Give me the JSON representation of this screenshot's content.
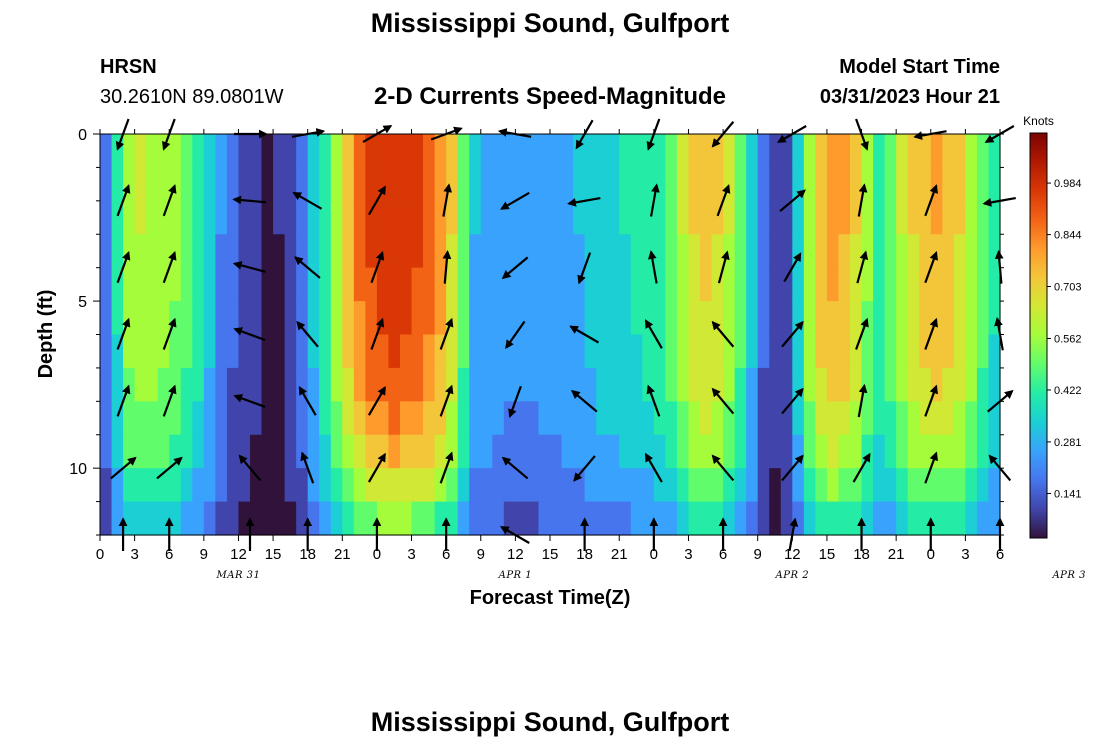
{
  "header": {
    "title": "Mississippi Sound, Gulfport",
    "station_id": "HRSN",
    "coordinates": "30.2610N  89.0801W",
    "subtitle": "2-D Currents Speed-Magnitude",
    "model_start_label": "Model Start Time",
    "model_start_value": "03/31/2023 Hour 21",
    "repeated_title": "Mississippi Sound, Gulfport"
  },
  "chart_data": {
    "type": "heatmap",
    "xlabel": "Forecast Time(Z)",
    "ylabel": "Depth (ft)",
    "x_tick_labels": [
      "0",
      "3",
      "6",
      "9",
      "12",
      "15",
      "18",
      "21",
      "0",
      "3",
      "6",
      "9",
      "12",
      "15",
      "18",
      "21",
      "0",
      "3",
      "6",
      "9",
      "12",
      "15",
      "18",
      "21",
      "0",
      "3",
      "6"
    ],
    "date_labels": [
      "MAR 31",
      "APR 1",
      "APR 2",
      "APR 3"
    ],
    "date_label_hours": [
      12,
      36,
      60,
      84
    ],
    "x_range_hours": [
      0,
      78
    ],
    "y_tick_labels": [
      "0",
      "5",
      "10"
    ],
    "y_tick_values": [
      0,
      5,
      10
    ],
    "ylim": [
      0,
      12
    ],
    "y_inverted": true,
    "colorbar": {
      "label": "Knots",
      "tick_labels": [
        "0.984",
        "0.844",
        "0.703",
        "0.562",
        "0.422",
        "0.281",
        "0.141"
      ],
      "tick_values": [
        0.984,
        0.844,
        0.703,
        0.562,
        0.422,
        0.281,
        0.141
      ],
      "range": [
        0.02,
        1.12
      ],
      "colors": [
        "#30123b",
        "#4145ab",
        "#4675ed",
        "#39a2fc",
        "#1bcfd4",
        "#24eca6",
        "#61fc6c",
        "#a4fc3b",
        "#d1e834",
        "#f3c63a",
        "#fe9b2d",
        "#f36315",
        "#d93806",
        "#b11901",
        "#7a0402"
      ]
    },
    "heat_columns_hours": [
      0,
      1,
      2,
      3,
      4,
      5,
      6,
      7,
      8,
      9,
      10,
      11,
      12,
      13,
      14,
      15,
      16,
      17,
      18,
      19,
      20,
      21,
      22,
      23,
      24,
      25,
      26,
      27,
      28,
      29,
      30,
      31,
      32,
      33,
      34,
      35,
      36,
      37,
      38,
      39,
      40,
      41,
      42,
      43,
      44,
      45,
      46,
      47,
      48,
      49,
      50,
      51,
      52,
      53,
      54,
      55,
      56,
      57,
      58,
      59,
      60,
      61,
      62,
      63,
      64,
      65,
      66,
      67,
      68,
      69,
      70,
      71,
      72,
      73,
      74,
      75,
      76,
      77
    ],
    "depth_rows_ft": [
      0,
      1,
      2,
      3,
      4,
      5,
      6,
      7,
      8,
      9,
      10,
      11
    ],
    "speed_profile": [
      0.2,
      0.4,
      0.58,
      0.62,
      0.6,
      0.58,
      0.55,
      0.5,
      0.42,
      0.32,
      0.22,
      0.15,
      0.1,
      0.07,
      0.05,
      0.06,
      0.1,
      0.2,
      0.32,
      0.45,
      0.6,
      0.76,
      0.88,
      0.95,
      0.98,
      1.0,
      0.98,
      0.95,
      0.9,
      0.82,
      0.7,
      0.5,
      0.3,
      0.28,
      0.26,
      0.25,
      0.25,
      0.25,
      0.26,
      0.27,
      0.28,
      0.3,
      0.32,
      0.35,
      0.37,
      0.38,
      0.4,
      0.42,
      0.45,
      0.52,
      0.62,
      0.7,
      0.72,
      0.7,
      0.62,
      0.5,
      0.32,
      0.15,
      0.08,
      0.12,
      0.35,
      0.6,
      0.75,
      0.8,
      0.78,
      0.7,
      0.55,
      0.45,
      0.52,
      0.62,
      0.7,
      0.75,
      0.78,
      0.75,
      0.7,
      0.6,
      0.5,
      0.4
    ],
    "speed_depth_factor": [
      1.0,
      1.0,
      0.99,
      0.98,
      0.97,
      0.95,
      0.93,
      0.9,
      0.85,
      0.78,
      0.68,
      0.55
    ],
    "vector_times_hours": [
      2,
      6,
      13,
      18,
      24,
      30,
      36,
      42,
      48,
      54,
      60,
      66,
      72,
      78
    ],
    "vector_depths_ft": [
      0,
      2,
      4,
      6,
      8,
      10,
      12
    ],
    "vector_directions_deg": [
      [
        200,
        200,
        90,
        80,
        60,
        70,
        280,
        210,
        200,
        220,
        240,
        160,
        260,
        240
      ],
      [
        20,
        20,
        275,
        300,
        30,
        10,
        240,
        260,
        10,
        20,
        50,
        10,
        20,
        260
      ],
      [
        20,
        20,
        285,
        310,
        20,
        5,
        230,
        200,
        350,
        15,
        30,
        15,
        20,
        355
      ],
      [
        20,
        20,
        290,
        320,
        20,
        20,
        215,
        300,
        330,
        320,
        40,
        20,
        20,
        350
      ],
      [
        20,
        20,
        290,
        330,
        30,
        20,
        200,
        310,
        340,
        320,
        40,
        10,
        20,
        50
      ],
      [
        50,
        50,
        320,
        340,
        30,
        20,
        310,
        220,
        330,
        320,
        40,
        30,
        20,
        320
      ],
      [
        0,
        0,
        0,
        0,
        0,
        0,
        300,
        0,
        0,
        0,
        10,
        0,
        0,
        0
      ]
    ]
  }
}
